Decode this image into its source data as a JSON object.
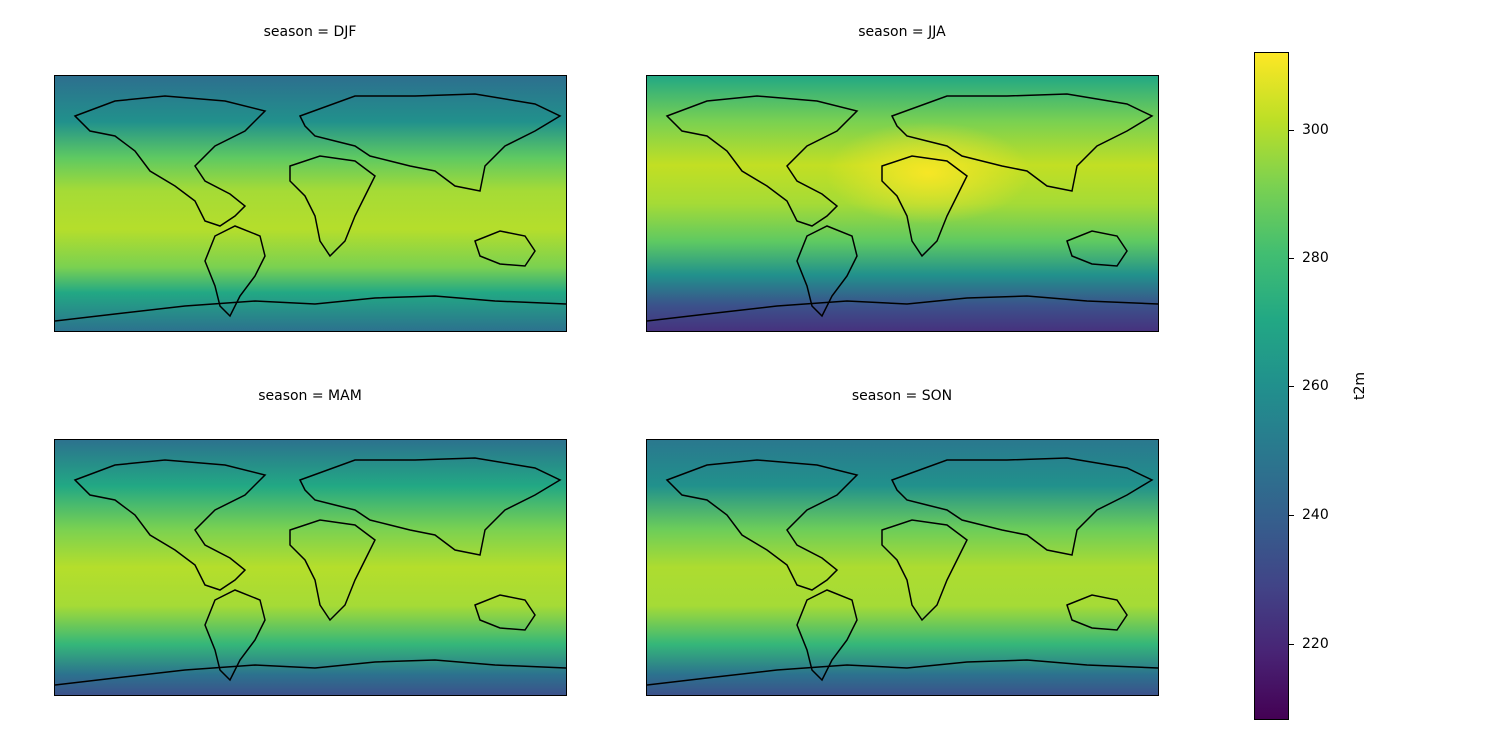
{
  "panels": [
    {
      "title": "season = DJF",
      "theme": "djf"
    },
    {
      "title": "season = JJA",
      "theme": "jja"
    },
    {
      "title": "season = MAM",
      "theme": "mam"
    },
    {
      "title": "season = SON",
      "theme": "son"
    }
  ],
  "colorbar": {
    "label": "t2m",
    "colormap": "viridis",
    "range": [
      208,
      312
    ],
    "ticks": [
      "300",
      "280",
      "260",
      "240",
      "220"
    ]
  }
}
